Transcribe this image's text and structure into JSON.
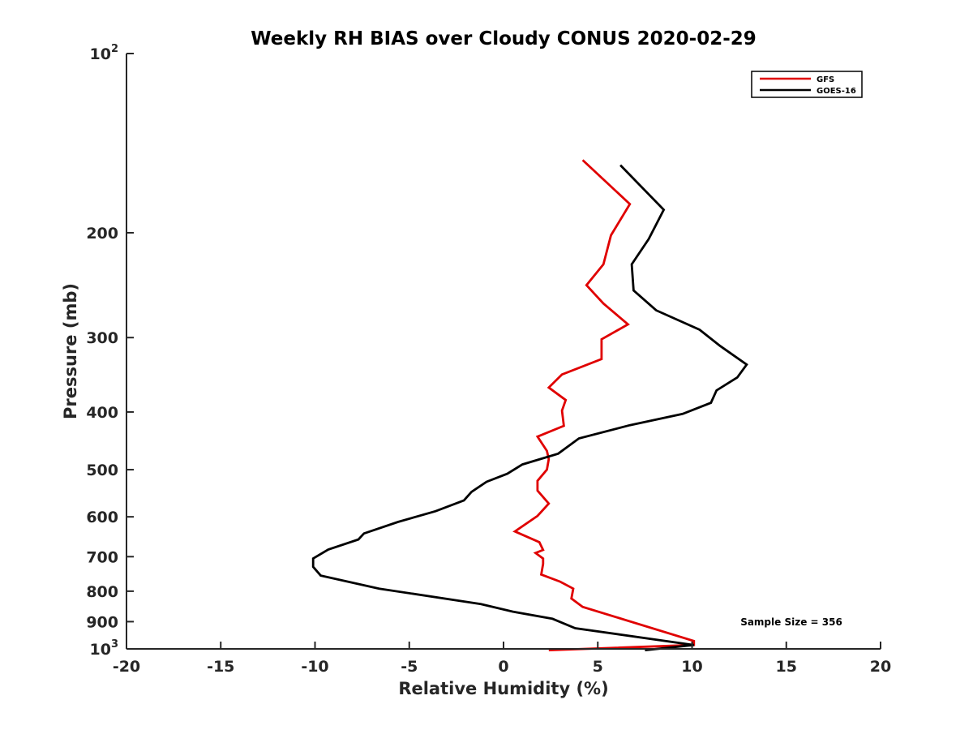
{
  "chart_data": {
    "type": "line",
    "title": "Weekly RH BIAS over Cloudy CONUS 2020-02-29",
    "xlabel": "Relative Humidity (%)",
    "ylabel": "Pressure (mb)",
    "xlim": [
      -20,
      20
    ],
    "ylim": [
      100,
      1000
    ],
    "y_scale": "log",
    "y_reversed": true,
    "grid": false,
    "x_ticks": [
      -20,
      -15,
      -10,
      -5,
      0,
      5,
      10,
      15,
      20
    ],
    "x_tick_labels": [
      "-20",
      "-15",
      "-10",
      "-5",
      "0",
      "5",
      "10",
      "15",
      "20"
    ],
    "y_ticks": [
      100,
      200,
      300,
      400,
      500,
      600,
      700,
      800,
      900,
      1000
    ],
    "y_tick_labels": [
      {
        "base": "10",
        "sup": "2"
      },
      {
        "base": "200",
        "sup": ""
      },
      {
        "base": "300",
        "sup": ""
      },
      {
        "base": "400",
        "sup": ""
      },
      {
        "base": "500",
        "sup": ""
      },
      {
        "base": "600",
        "sup": ""
      },
      {
        "base": "700",
        "sup": ""
      },
      {
        "base": "800",
        "sup": ""
      },
      {
        "base": "900",
        "sup": ""
      },
      {
        "base": "10",
        "sup": "3"
      }
    ],
    "legend_position": "top-right",
    "annotation": "Sample Size = 356",
    "series": [
      {
        "name": "GFS",
        "color": "#e00000",
        "points": [
          [
            4.2,
            151
          ],
          [
            6.7,
            179
          ],
          [
            5.7,
            202
          ],
          [
            5.3,
            226
          ],
          [
            4.4,
            245
          ],
          [
            5.3,
            263
          ],
          [
            6.6,
            285
          ],
          [
            5.2,
            302
          ],
          [
            5.2,
            326
          ],
          [
            3.1,
            346
          ],
          [
            2.4,
            364
          ],
          [
            3.3,
            382
          ],
          [
            3.1,
            398
          ],
          [
            3.2,
            422
          ],
          [
            1.8,
            440
          ],
          [
            2.3,
            465
          ],
          [
            2.4,
            480
          ],
          [
            2.3,
            500
          ],
          [
            1.8,
            522
          ],
          [
            1.8,
            542
          ],
          [
            2.4,
            570
          ],
          [
            1.8,
            598
          ],
          [
            0.6,
            635
          ],
          [
            1.9,
            662
          ],
          [
            2.1,
            682
          ],
          [
            1.7,
            690
          ],
          [
            2.1,
            705
          ],
          [
            2.1,
            720
          ],
          [
            2.0,
            750
          ],
          [
            3.0,
            771
          ],
          [
            3.7,
            792
          ],
          [
            3.6,
            823
          ],
          [
            4.2,
            850
          ],
          [
            10.1,
            970
          ],
          [
            10.1,
            985
          ],
          [
            2.4,
            1005
          ]
        ]
      },
      {
        "name": "GOES-16",
        "color": "#000000",
        "points": [
          [
            6.2,
            154
          ],
          [
            8.5,
            183
          ],
          [
            7.7,
            205
          ],
          [
            6.8,
            226
          ],
          [
            6.9,
            250
          ],
          [
            8.1,
            270
          ],
          [
            10.4,
            291
          ],
          [
            11.5,
            310
          ],
          [
            12.9,
            333
          ],
          [
            12.4,
            350
          ],
          [
            11.3,
            368
          ],
          [
            11.0,
            386
          ],
          [
            9.5,
            403
          ],
          [
            6.7,
            421
          ],
          [
            4.0,
            443
          ],
          [
            2.9,
            470
          ],
          [
            1.0,
            490
          ],
          [
            0.2,
            508
          ],
          [
            -0.9,
            524
          ],
          [
            -1.7,
            545
          ],
          [
            -2.1,
            563
          ],
          [
            -3.6,
            587
          ],
          [
            -5.6,
            612
          ],
          [
            -7.4,
            640
          ],
          [
            -7.7,
            655
          ],
          [
            -9.3,
            681
          ],
          [
            -10.1,
            705
          ],
          [
            -10.1,
            728
          ],
          [
            -9.7,
            753
          ],
          [
            -6.6,
            792
          ],
          [
            -1.2,
            841
          ],
          [
            0.5,
            866
          ],
          [
            2.6,
            890
          ],
          [
            3.8,
            923
          ],
          [
            10.1,
            985
          ],
          [
            7.5,
            1005
          ]
        ]
      }
    ]
  }
}
